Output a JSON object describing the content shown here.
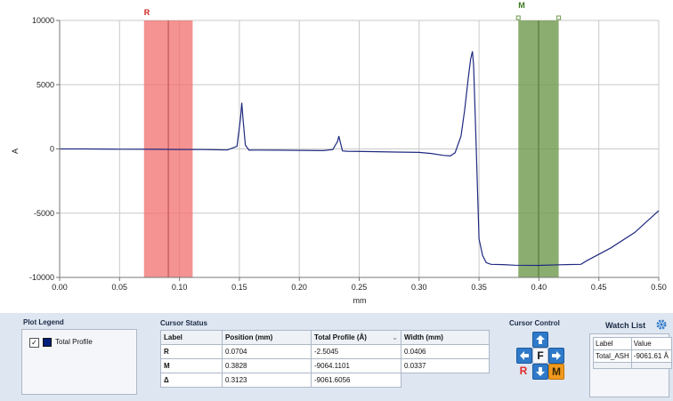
{
  "plot": {
    "ylabel": "A",
    "xlabel": "mm",
    "x_ticks": [
      "0.00",
      "0.05",
      "0.10",
      "0.15",
      "0.20",
      "0.25",
      "0.30",
      "0.35",
      "0.40",
      "0.45",
      "0.50"
    ],
    "y_ticks": [
      "10000",
      "5000",
      "0",
      "-5000",
      "-10000"
    ],
    "cursor_r_label": "R",
    "cursor_m_label": "M",
    "colors": {
      "line": "#1f2a80",
      "cursor_r": "#f26d6d",
      "cursor_m": "#6e9a4c",
      "cursor_r_label": "#d42020",
      "cursor_m_label": "#3c7a1f",
      "grid": "#c9c9c9"
    }
  },
  "chart_data": {
    "type": "line",
    "title": "",
    "xlabel": "mm",
    "ylabel": "A",
    "xlim": [
      0,
      0.5
    ],
    "ylim": [
      -10000,
      10000
    ],
    "grid": true,
    "series": [
      {
        "name": "Total Profile",
        "x": [
          0.0,
          0.02,
          0.05,
          0.08,
          0.1,
          0.12,
          0.14,
          0.148,
          0.151,
          0.152,
          0.153,
          0.155,
          0.158,
          0.165,
          0.18,
          0.2,
          0.22,
          0.228,
          0.232,
          0.233,
          0.234,
          0.236,
          0.24,
          0.26,
          0.28,
          0.3,
          0.31,
          0.32,
          0.326,
          0.33,
          0.335,
          0.338,
          0.341,
          0.343,
          0.3445,
          0.3455,
          0.347,
          0.35,
          0.353,
          0.356,
          0.36,
          0.37,
          0.38,
          0.4,
          0.42,
          0.435,
          0.44,
          0.46,
          0.48,
          0.5
        ],
        "y": [
          0,
          0,
          -20,
          -30,
          -40,
          -50,
          -80,
          200,
          2400,
          3600,
          2400,
          300,
          -100,
          -90,
          -100,
          -110,
          -130,
          -50,
          600,
          1000,
          600,
          -150,
          -180,
          -210,
          -240,
          -270,
          -350,
          -500,
          -550,
          -300,
          1000,
          3000,
          5500,
          7000,
          7600,
          6500,
          2000,
          -7000,
          -8300,
          -8850,
          -8980,
          -9000,
          -9050,
          -9064,
          -9010,
          -8980,
          -8700,
          -7700,
          -6500,
          -4800
        ]
      }
    ],
    "cursors": [
      {
        "label": "R",
        "position": 0.0704,
        "width": 0.0406
      },
      {
        "label": "M",
        "position": 0.3828,
        "width": 0.0337
      }
    ]
  },
  "legend": {
    "title": "Plot Legend",
    "checked": true,
    "series_label": "Total Profile"
  },
  "cursor_status": {
    "title": "Cursor Status",
    "headers": [
      "Label",
      "Position (mm)",
      "Total Profile (Å)",
      "Width (mm)"
    ],
    "rows": [
      {
        "label": "R",
        "position": "0.0704",
        "total": "-2.5045",
        "width": "0.0406"
      },
      {
        "label": "M",
        "position": "0.3828",
        "total": "-9064.1101",
        "width": "0.0337"
      },
      {
        "label": "Δ",
        "position": "0.3123",
        "total": "-9061.6056",
        "width": ""
      }
    ]
  },
  "cursor_control": {
    "title": "Cursor Control",
    "up_icon": "arrow-up",
    "down_icon": "arrow-down",
    "left_icon": "arrow-left",
    "right_icon": "arrow-right",
    "f_label": "F",
    "r_label": "R",
    "m_label": "M"
  },
  "watch_list": {
    "title": "Watch List",
    "headers": [
      "Label",
      "Value"
    ],
    "rows": [
      {
        "label": "Total_ASH",
        "value": "-9061.61 Å"
      }
    ]
  }
}
